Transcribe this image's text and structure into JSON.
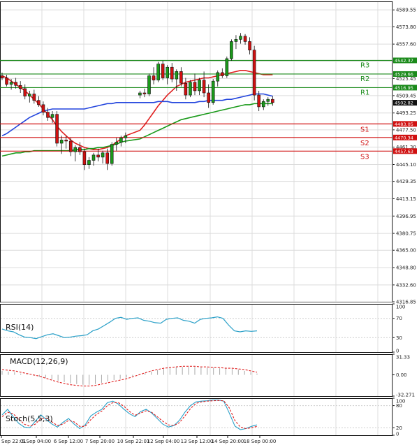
{
  "chart_data": [
    {
      "type": "candlestick",
      "panel": "price",
      "ylim": [
        4316.85,
        4597.5
      ],
      "y_ticks": [
        "4589.55",
        "4573.80",
        "4557.60",
        "4541.55",
        "4525.45",
        "4509.45",
        "4493.25",
        "4477.50",
        "4461.30",
        "4445.10",
        "4429.35",
        "4413.15",
        "4396.95",
        "4380.75",
        "4365.00",
        "4348.80",
        "4332.60",
        "4316.85"
      ],
      "candles": [
        [
          4528,
          4531,
          4524,
          4526
        ],
        [
          4526,
          4529,
          4518,
          4520
        ],
        [
          4520,
          4525,
          4515,
          4522
        ],
        [
          4522,
          4526,
          4516,
          4519
        ],
        [
          4519,
          4523,
          4512,
          4516
        ],
        [
          4516,
          4520,
          4506,
          4509
        ],
        [
          4509,
          4514,
          4503,
          4511
        ],
        [
          4511,
          4515,
          4502,
          4505
        ],
        [
          4505,
          4509,
          4499,
          4501
        ],
        [
          4501,
          4504,
          4491,
          4494
        ],
        [
          4494,
          4498,
          4486,
          4489
        ],
        [
          4489,
          4495,
          4484,
          4492
        ],
        [
          4492,
          4495,
          4462,
          4465
        ],
        [
          4465,
          4472,
          4455,
          4468
        ],
        [
          4468,
          4472,
          4460,
          4467
        ],
        [
          4467,
          4470,
          4453,
          4457
        ],
        [
          4457,
          4463,
          4448,
          4461
        ],
        [
          4461,
          4466,
          4454,
          4457
        ],
        [
          4457,
          4460,
          4440,
          4445
        ],
        [
          4445,
          4452,
          4441,
          4449
        ],
        [
          4449,
          4456,
          4444,
          4454
        ],
        [
          4454,
          4460,
          4448,
          4452
        ],
        [
          4452,
          4458,
          4446,
          4456
        ],
        [
          4456,
          4460,
          4440,
          4446
        ],
        [
          4446,
          4466,
          4444,
          4464
        ],
        [
          4464,
          4470,
          4458,
          4466
        ],
        [
          4466,
          4472,
          4462,
          4470
        ],
        [
          4470,
          4475,
          4465,
          4472
        ],
        [
          4510,
          4514,
          4507,
          4512
        ],
        [
          4512,
          4516,
          4508,
          4511
        ],
        [
          4511,
          4530,
          4509,
          4528
        ],
        [
          4528,
          4536,
          4520,
          4524
        ],
        [
          4524,
          4541,
          4522,
          4539
        ],
        [
          4539,
          4542,
          4524,
          4526
        ],
        [
          4526,
          4538,
          4520,
          4536
        ],
        [
          4536,
          4540,
          4522,
          4525
        ],
        [
          4525,
          4534,
          4514,
          4532
        ],
        [
          4532,
          4536,
          4518,
          4521
        ],
        [
          4521,
          4526,
          4506,
          4510
        ],
        [
          4510,
          4524,
          4508,
          4522
        ],
        [
          4522,
          4530,
          4510,
          4514
        ],
        [
          4514,
          4526,
          4510,
          4524
        ],
        [
          4524,
          4532,
          4508,
          4512
        ],
        [
          4512,
          4520,
          4498,
          4503
        ],
        [
          4503,
          4525,
          4501,
          4523
        ],
        [
          4523,
          4533,
          4518,
          4531
        ],
        [
          4531,
          4535,
          4526,
          4528
        ],
        [
          4528,
          4546,
          4526,
          4544
        ],
        [
          4544,
          4562,
          4542,
          4560
        ],
        [
          4560,
          4566,
          4553,
          4562
        ],
        [
          4562,
          4568,
          4558,
          4565
        ],
        [
          4565,
          4567,
          4557,
          4560
        ],
        [
          4560,
          4564,
          4548,
          4552
        ],
        [
          4552,
          4556,
          4505,
          4510
        ],
        [
          4510,
          4514,
          4495,
          4499
        ],
        [
          4499,
          4506,
          4496,
          4504
        ],
        [
          4504,
          4508,
          4500,
          4506
        ],
        [
          4506,
          4509,
          4500,
          4503
        ]
      ],
      "levels": [
        {
          "name": "R3",
          "value": 4542.37,
          "label": "4542.37"
        },
        {
          "name": "R2",
          "value": 4529.66,
          "label": "4529.66"
        },
        {
          "name": "R1",
          "value": 4516.95,
          "label": "4516.95"
        },
        {
          "name": "S1",
          "value": 4483.05,
          "label": "4483.05"
        },
        {
          "name": "S2",
          "value": 4470.34,
          "label": "4470.34"
        },
        {
          "name": "S3",
          "value": 4457.63,
          "label": "4457.63"
        }
      ],
      "current_price": "4502.82",
      "moving_averages": [
        {
          "color": "#e02020",
          "values": [
            4528,
            4526,
            4523,
            4520,
            4517,
            4514,
            4510,
            4506,
            4502,
            4497,
            4492,
            4487,
            4481,
            4476,
            4472,
            4468,
            4465,
            4463,
            4461,
            4460,
            4459,
            4459,
            4460,
            4461,
            4463,
            4466,
            4469,
            4472,
            4477,
            4482,
            4488,
            4494,
            4500,
            4505,
            4510,
            4514,
            4518,
            4520,
            4522,
            4523,
            4524,
            4525,
            4526,
            4526,
            4527,
            4528,
            4529,
            4530,
            4531,
            4532,
            4533,
            4533,
            4532,
            4531,
            4530,
            4529,
            4529,
            4529
          ]
        },
        {
          "color": "#2244dd",
          "values": [
            4472,
            4474,
            4477,
            4480,
            4483,
            4486,
            4489,
            4491,
            4493,
            4495,
            4496,
            4497,
            4497,
            4497,
            4497,
            4497,
            4497,
            4497,
            4497,
            4498,
            4499,
            4500,
            4501,
            4502,
            4502,
            4503,
            4503,
            4503,
            4503,
            4503,
            4503,
            4503,
            4504,
            4504,
            4504,
            4503,
            4503,
            4503,
            4503,
            4503,
            4503,
            4504,
            4504,
            4505,
            4505,
            4505,
            4505,
            4506,
            4506,
            4507,
            4508,
            4509,
            4510,
            4511,
            4511,
            4511,
            4510,
            4509
          ]
        },
        {
          "color": "#1a9a1a",
          "values": [
            4453,
            4454,
            4455,
            4456,
            4456,
            4457,
            4457,
            4458,
            4458,
            4458,
            4458,
            4458,
            4458,
            4458,
            4458,
            4458,
            4459,
            4459,
            4459,
            4460,
            4460,
            4461,
            4461,
            4462,
            4463,
            4464,
            4466,
            4467,
            4469,
            4471,
            4473,
            4475,
            4477,
            4479,
            4481,
            4483,
            4485,
            4487,
            4488,
            4489,
            4490,
            4491,
            4492,
            4493,
            4494,
            4495,
            4496,
            4497,
            4498,
            4499,
            4500,
            4501,
            4501,
            4502,
            4502,
            4502,
            4502,
            4502
          ]
        }
      ]
    },
    {
      "type": "line",
      "panel": "rsi",
      "title": "RSI(14)",
      "ylim": [
        0,
        100
      ],
      "y_ticks": [
        "100",
        "70",
        "30",
        "0"
      ],
      "series": [
        {
          "color": "#2aa0c8",
          "values": [
            48,
            44,
            42,
            36,
            31,
            30,
            28,
            32,
            36,
            38,
            34,
            30,
            31,
            33,
            34,
            36,
            44,
            48,
            55,
            62,
            70,
            72,
            68,
            70,
            71,
            66,
            64,
            61,
            60,
            68,
            70,
            71,
            66,
            64,
            60,
            68,
            70,
            71,
            73,
            70,
            56,
            44,
            42,
            44,
            43,
            44
          ]
        }
      ]
    },
    {
      "type": "bar",
      "panel": "macd",
      "title": "MACD(12,26,9)",
      "ylim": [
        -32.27,
        31.33
      ],
      "y_ticks": [
        "31.33",
        "0.00",
        "-32.271"
      ],
      "histogram": [
        6,
        5,
        4,
        2,
        1,
        -1,
        -3,
        -5,
        -7,
        -9,
        -11,
        -13,
        -14,
        -15,
        -15,
        -14,
        -12,
        -10,
        -8,
        -6,
        -4,
        -2,
        1,
        3,
        5,
        7,
        9,
        11,
        12,
        12,
        12,
        12,
        12,
        11,
        11,
        10,
        10,
        9,
        8,
        6,
        4,
        2
      ],
      "signal": [
        8,
        7,
        6,
        4,
        2,
        0,
        -2,
        -5,
        -8,
        -11,
        -13,
        -15,
        -16,
        -17,
        -17,
        -16,
        -14,
        -12,
        -10,
        -8,
        -6,
        -3,
        0,
        3,
        6,
        8,
        10,
        11,
        12,
        13,
        13,
        13,
        12,
        12,
        11,
        11,
        10,
        10,
        9,
        8,
        6,
        4
      ]
    },
    {
      "type": "line",
      "panel": "stoch",
      "title": "Stoch(5,5,3)",
      "ylim": [
        0,
        100
      ],
      "y_ticks": [
        "100",
        "80",
        "20",
        "0"
      ],
      "series": [
        {
          "color": "#2aa0c8",
          "values": [
            55,
            70,
            50,
            32,
            22,
            20,
            38,
            55,
            42,
            30,
            22,
            35,
            45,
            30,
            18,
            28,
            52,
            62,
            70,
            88,
            92,
            84,
            70,
            58,
            50,
            64,
            70,
            60,
            45,
            30,
            22,
            26,
            40,
            62,
            80,
            90,
            92,
            93,
            95,
            95,
            92,
            60,
            25,
            15,
            18,
            24,
            28
          ]
        },
        {
          "color": "#e02020",
          "values": [
            50,
            62,
            58,
            44,
            30,
            24,
            30,
            45,
            46,
            36,
            26,
            30,
            40,
            36,
            24,
            24,
            42,
            56,
            65,
            80,
            88,
            88,
            78,
            64,
            54,
            60,
            66,
            62,
            50,
            38,
            28,
            26,
            34,
            52,
            72,
            86,
            90,
            92,
            93,
            94,
            93,
            74,
            40,
            22,
            18,
            20,
            24
          ]
        }
      ]
    },
    {
      "type": "axis",
      "panel": "time",
      "x_ticks": [
        "Sep 22:01",
        "5 Sep 04:00",
        "6 Sep 12:00",
        "7 Sep 20:00",
        "10 Sep 22:01",
        "12 Sep 04:00",
        "13 Sep 12:00",
        "14 Sep 20:00",
        "18 Sep 00:00"
      ]
    }
  ]
}
